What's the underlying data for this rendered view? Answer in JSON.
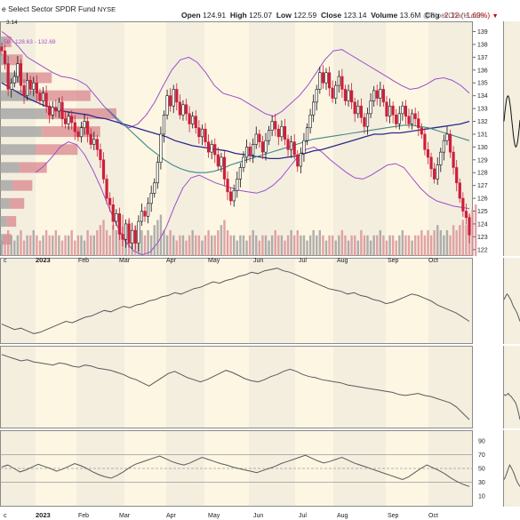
{
  "header": {
    "title": "e Select Sector SPDR Fund",
    "exchange": "NYSE",
    "open_label": "Open",
    "open": "124.91",
    "high_label": "High",
    "high": "125.07",
    "low_label": "Low",
    "low": "122.59",
    "close_label": "Close",
    "close": "123.14",
    "volume_label": "Volume",
    "volume": "13.6M",
    "chg_label": "Chg",
    "chg": "-2.12 (-1.69%)",
    "watermark": "@StockCharts.com",
    "legend_snippet": "58 - 128.63 - 132.69",
    "top_left_value": "3.14"
  },
  "colors": {
    "panel_bg": "#fdf6e3",
    "band_dark": "#ece7dc",
    "up": "#111111",
    "down": "#cc1f3a",
    "bb": "#9a4fc9",
    "ma_slow": "#2a2a8c",
    "ma_mid": "#3c8a8a",
    "vbp_up": "#9e9e9e",
    "vbp_down": "#d9868e",
    "indicator": "#5a5a5a"
  },
  "chart_data": [
    {
      "type": "candlestick",
      "y_ticks": [
        "122",
        "123",
        "124",
        "125",
        "126",
        "127",
        "128",
        "129",
        "130",
        "131",
        "132",
        "133",
        "134",
        "135",
        "136",
        "137",
        "138",
        "139"
      ],
      "ylim": [
        121.5,
        139.8
      ],
      "x_labels": [
        "c",
        "2023",
        "Feb",
        "Mar",
        "Apr",
        "May",
        "Jun",
        "Jul",
        "Aug",
        "Sep",
        "Oct"
      ],
      "closes": [
        137.5,
        136.5,
        134.5,
        135,
        135.5,
        136.5,
        134.8,
        134,
        135.2,
        134.5,
        135,
        134.2,
        133.6,
        134.2,
        133.2,
        132.5,
        133.1,
        132.8,
        133.5,
        132.2,
        131.8,
        132.4,
        131.9,
        131.2,
        130.8,
        131.5,
        132,
        131,
        130.2,
        130.6,
        129.8,
        129,
        127.5,
        126,
        125.5,
        124.2,
        124.8,
        123.2,
        122.8,
        124,
        122.5,
        123.5,
        122.5,
        124.2,
        125,
        124.6,
        125.6,
        126.4,
        127.2,
        128.8,
        131,
        132.5,
        134,
        133.2,
        134.5,
        133.5,
        132.5,
        133.3,
        132.6,
        131.8,
        132.4,
        131.5,
        130.8,
        131.4,
        130.4,
        129.6,
        130.2,
        129.4,
        128.5,
        129.2,
        127.5,
        126.5,
        125.8,
        126.6,
        127.5,
        128.4,
        129.2,
        130,
        129.4,
        130.2,
        131,
        130.4,
        129.6,
        130.5,
        131.3,
        132,
        131.4,
        130.8,
        131.6,
        130.6,
        129.8,
        130.4,
        129.4,
        128.5,
        129.5,
        130.5,
        131.5,
        132.5,
        133.5,
        134.5,
        135.8,
        135,
        135.8,
        134.6,
        133.8,
        134.8,
        135.5,
        134.5,
        133.6,
        134.4,
        133.5,
        132.6,
        133.2,
        132.3,
        131.6,
        132.6,
        133.6,
        134.4,
        133.8,
        134.5,
        133.5,
        132.4,
        133.2,
        132.5,
        131.8,
        132.6,
        133.2,
        132.4,
        131.8,
        132.6,
        132.2,
        131.5,
        131,
        129.8,
        129.2,
        128.3,
        127.5,
        128.6,
        129.6,
        130.5,
        131,
        129.6,
        128.4,
        127.2,
        126,
        125,
        124.5,
        123.14
      ],
      "volume": [
        3,
        4,
        5,
        4,
        3,
        4,
        5,
        3,
        4,
        4,
        5,
        4,
        3,
        4,
        5,
        4,
        4,
        5,
        4,
        3,
        4,
        4,
        5,
        3,
        4,
        4,
        3,
        5,
        4,
        4,
        5,
        6,
        7,
        5,
        4,
        6,
        5,
        7,
        8,
        6,
        7,
        5,
        6,
        4,
        5,
        4,
        5,
        4,
        6,
        7,
        8,
        5,
        4,
        5,
        4,
        3,
        4,
        4,
        3,
        4,
        5,
        4,
        4,
        3,
        4,
        5,
        4,
        4,
        5,
        6,
        7,
        5,
        4,
        4,
        3,
        4,
        4,
        3,
        4,
        5,
        4,
        3,
        4,
        4,
        3,
        4,
        5,
        4,
        4,
        3,
        4,
        5,
        4,
        5,
        4,
        4,
        3,
        4,
        5,
        4,
        5,
        4,
        3,
        4,
        4,
        3,
        4,
        5,
        4,
        3,
        4,
        4,
        3,
        5,
        4,
        4,
        3,
        4,
        4,
        5,
        4,
        3,
        4,
        4,
        3,
        4,
        5,
        4,
        4,
        3,
        4,
        4,
        5,
        4,
        5,
        4,
        5,
        6,
        5,
        4,
        5,
        4,
        6,
        5,
        6,
        7,
        6,
        8,
        9,
        10
      ],
      "ma_slow": [
        135,
        134.6,
        134.2,
        133.8,
        133.5,
        133.2,
        133,
        132.8,
        132.7,
        132.6,
        132.5,
        132.3,
        132.2,
        132,
        131.8,
        131.6,
        131.4,
        131.2,
        131,
        130.8,
        130.5,
        130.3,
        130.1,
        130,
        129.9,
        129.8,
        129.7,
        129.5,
        129.4,
        129.3,
        129.2,
        129.1,
        129.1,
        129.2,
        129.3,
        129.5,
        129.7,
        129.8,
        130,
        130.2,
        130.4,
        130.6,
        130.8,
        131,
        131,
        131.1,
        131.1,
        131.2,
        131.3,
        131.4,
        131.5,
        131.6,
        131.7,
        131.8,
        132
      ],
      "ma_mid": [
        133,
        132.4,
        131.8,
        131.2,
        130.6,
        130,
        129.5,
        129,
        128.6,
        128.3,
        128.1,
        128,
        128,
        128.1,
        128.3,
        128.6,
        128.8,
        129,
        129.2,
        129.4,
        129.6,
        129.8,
        130,
        130.2,
        130.4,
        130.6,
        130.7,
        130.8,
        130.9,
        131,
        131.1,
        131.2,
        131.3,
        131.4,
        131.5,
        131.6,
        131.7,
        131.7,
        131.6,
        131.5,
        131.3,
        131.1,
        130.9,
        130.7,
        130.5
      ],
      "bb_upper": [
        139,
        138.5,
        137.8,
        137,
        136.6,
        136.2,
        135.8,
        135.5,
        135.4,
        135.2,
        134.8,
        134,
        133.2,
        132.5,
        131.8,
        131.5,
        131.8,
        132.5,
        133.5,
        134.8,
        136,
        136.8,
        137,
        136.6,
        135.8,
        134.8,
        134.2,
        134,
        133.8,
        133.4,
        133,
        132.6,
        132.4,
        132.8,
        133.4,
        134,
        134.8,
        135.8,
        136.8,
        137.5,
        137.6,
        137.2,
        136.8,
        136.4,
        136,
        135.6,
        135.2,
        134.8,
        134.5,
        134.6,
        134.9,
        135.3,
        135.4,
        135.2,
        134.8,
        134.2
      ],
      "bb_lower": [
        128,
        128.5,
        129.2,
        130,
        130.4,
        130.2,
        129.4,
        128.2,
        126.8,
        125.2,
        123.8,
        122.6,
        121.9,
        121.6,
        121.8,
        122.6,
        123.8,
        125.4,
        126.8,
        127.6,
        127.8,
        127.5,
        127.2,
        127,
        126.8,
        126.6,
        126.5,
        126.4,
        126.6,
        127,
        127.6,
        128.4,
        129.2,
        129.8,
        130,
        129.6,
        129,
        128.5,
        128,
        127.6,
        127.5,
        127.8,
        128.2,
        128.6,
        128.7,
        128.4,
        127.6,
        126.8,
        126.2,
        125.8,
        125.6,
        125.4,
        125.3,
        125.2
      ],
      "vbp": [
        {
          "price": 122.8,
          "up": 3,
          "down": 4
        },
        {
          "price": 124.2,
          "up": 4,
          "down": 6
        },
        {
          "price": 125.6,
          "up": 6,
          "down": 9
        },
        {
          "price": 127.0,
          "up": 8,
          "down": 12
        },
        {
          "price": 128.4,
          "up": 12,
          "down": 17
        },
        {
          "price": 129.8,
          "up": 22,
          "down": 26
        },
        {
          "price": 131.2,
          "up": 26,
          "down": 36
        },
        {
          "price": 132.6,
          "up": 28,
          "down": 44
        },
        {
          "price": 134.0,
          "up": 22,
          "down": 34
        },
        {
          "price": 135.4,
          "up": 14,
          "down": 18
        },
        {
          "price": 136.8,
          "up": 6,
          "down": 8
        },
        {
          "price": 138.2,
          "up": 3,
          "down": 4
        }
      ]
    },
    {
      "type": "line",
      "name": "",
      "values": [
        40,
        38,
        36,
        37,
        35,
        33,
        34,
        36,
        38,
        40,
        42,
        41,
        43,
        45,
        46,
        48,
        50,
        49,
        51,
        53,
        52,
        54,
        55,
        57,
        58,
        60,
        61,
        63,
        62,
        64,
        66,
        67,
        69,
        71,
        70,
        72,
        73,
        75,
        76,
        78,
        77,
        79,
        80,
        81,
        79,
        78,
        76,
        74,
        72,
        70,
        68,
        66,
        65,
        64,
        62,
        63,
        61,
        60,
        58,
        57,
        55,
        56,
        58,
        60,
        62,
        61,
        59,
        57,
        54,
        52,
        50,
        48,
        45,
        42
      ]
    },
    {
      "type": "line",
      "name": "",
      "values": [
        82,
        80,
        78,
        76,
        77,
        75,
        74,
        73,
        72,
        74,
        73,
        71,
        70,
        72,
        71,
        69,
        68,
        67,
        65,
        63,
        60,
        58,
        55,
        52,
        56,
        60,
        64,
        66,
        63,
        60,
        58,
        56,
        58,
        61,
        64,
        67,
        65,
        62,
        59,
        57,
        56,
        58,
        61,
        63,
        66,
        68,
        66,
        63,
        61,
        60,
        58,
        57,
        56,
        55,
        53,
        52,
        51,
        50,
        49,
        48,
        47,
        46,
        44,
        43,
        44,
        45,
        43,
        42,
        40,
        38,
        36,
        32,
        26,
        20
      ]
    },
    {
      "type": "line",
      "y_ticks": [
        "10",
        "30",
        "50",
        "70",
        "90"
      ],
      "ylim": [
        0,
        100
      ],
      "values": [
        52,
        55,
        50,
        45,
        48,
        52,
        56,
        53,
        50,
        46,
        49,
        53,
        57,
        54,
        50,
        45,
        41,
        38,
        36,
        40,
        45,
        51,
        56,
        59,
        62,
        65,
        68,
        64,
        60,
        57,
        55,
        58,
        62,
        66,
        63,
        60,
        57,
        55,
        52,
        50,
        48,
        46,
        44,
        47,
        50,
        53,
        57,
        60,
        63,
        66,
        69,
        65,
        61,
        58,
        60,
        63,
        66,
        62,
        58,
        55,
        52,
        49,
        46,
        43,
        40,
        37,
        34,
        38,
        44,
        50,
        55,
        51,
        47,
        42,
        36,
        31,
        27,
        24
      ]
    }
  ]
}
